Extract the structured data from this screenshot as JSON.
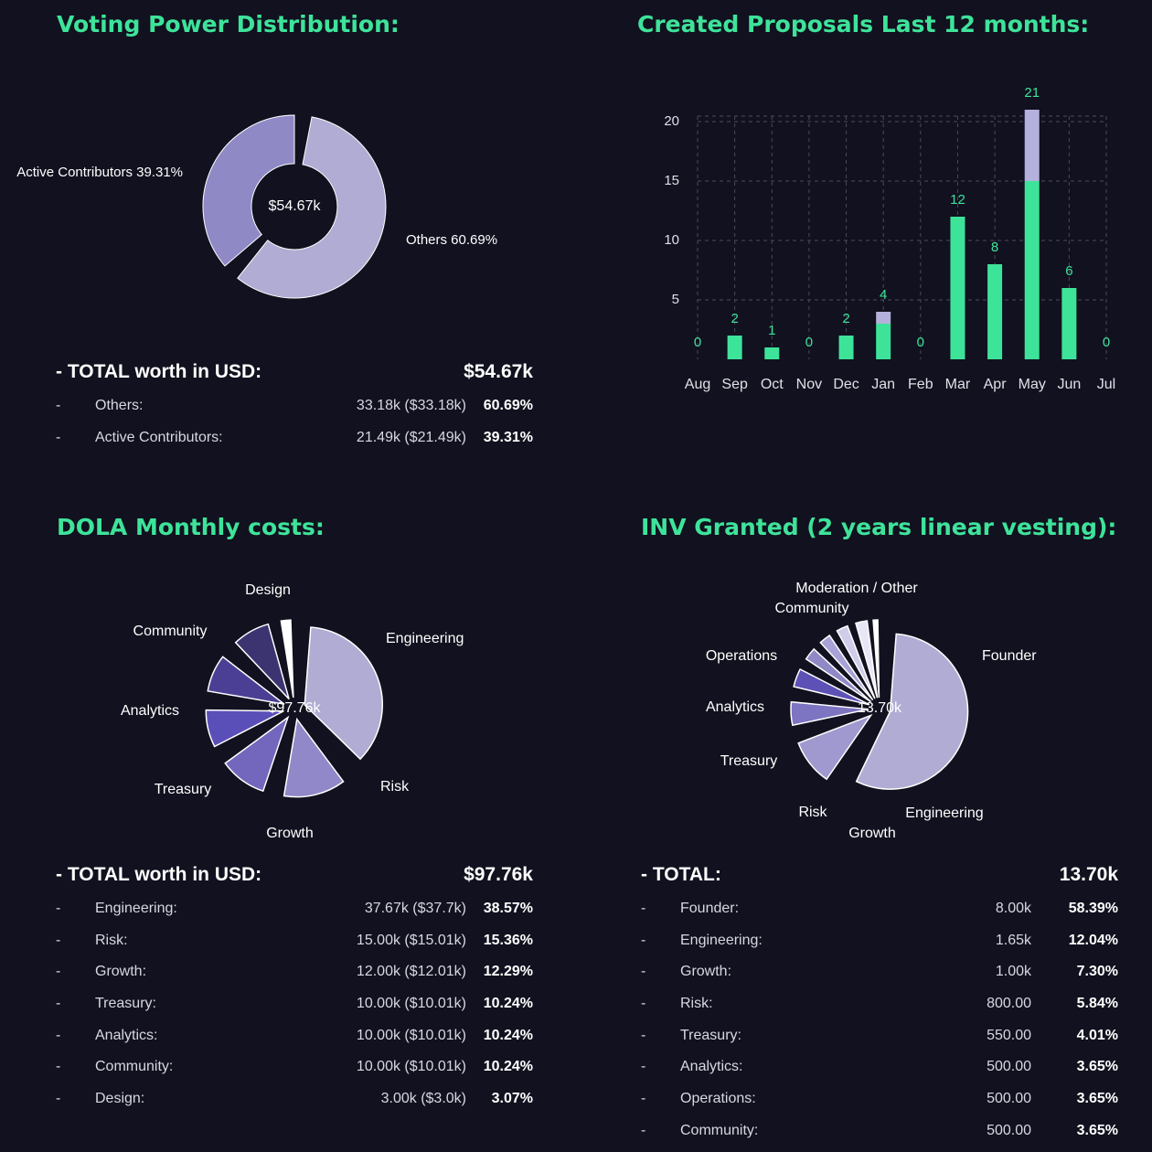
{
  "colors": {
    "background": "#11111f",
    "title": "#3ee39a",
    "bar_green": "#3ee39a",
    "bar_purple": "#b4b1dc",
    "wedge_light": "#b0acd3",
    "wedge_mid": "#8f89c6",
    "wedge_dark": "#5a50b0",
    "grid": "#4a4a5a"
  },
  "voting": {
    "title": "Voting Power Distribution:",
    "summary": {
      "label": "- TOTAL worth in USD:",
      "total": "$54.67k",
      "rows": [
        {
          "dash": "-",
          "name": "Others:",
          "value": "33.18k ($33.18k)",
          "pct": "60.69%"
        },
        {
          "dash": "-",
          "name": "Active Contributors:",
          "value": "21.49k ($21.49k)",
          "pct": "39.31%"
        }
      ]
    }
  },
  "proposals": {
    "title": "Created Proposals Last 12 months:"
  },
  "dola": {
    "title": "DOLA Monthly costs:",
    "summary": {
      "label": "- TOTAL worth in USD:",
      "total": "$97.76k",
      "rows": [
        {
          "dash": "-",
          "name": "Engineering:",
          "value": "37.67k ($37.7k)",
          "pct": "38.57%"
        },
        {
          "dash": "-",
          "name": "Risk:",
          "value": "15.00k ($15.01k)",
          "pct": "15.36%"
        },
        {
          "dash": "-",
          "name": "Growth:",
          "value": "12.00k ($12.01k)",
          "pct": "12.29%"
        },
        {
          "dash": "-",
          "name": "Treasury:",
          "value": "10.00k ($10.01k)",
          "pct": "10.24%"
        },
        {
          "dash": "-",
          "name": "Analytics:",
          "value": "10.00k ($10.01k)",
          "pct": "10.24%"
        },
        {
          "dash": "-",
          "name": "Community:",
          "value": "10.00k ($10.01k)",
          "pct": "10.24%"
        },
        {
          "dash": "-",
          "name": "Design:",
          "value": "3.00k ($3.0k)",
          "pct": "3.07%"
        }
      ]
    }
  },
  "inv": {
    "title": "INV Granted (2 years linear vesting):",
    "summary": {
      "label": "- TOTAL:",
      "total": "13.70k",
      "rows": [
        {
          "dash": "-",
          "name": "Founder:",
          "value": "8.00k",
          "pct": "58.39%"
        },
        {
          "dash": "-",
          "name": "Engineering:",
          "value": "1.65k",
          "pct": "12.04%"
        },
        {
          "dash": "-",
          "name": "Growth:",
          "value": "1.00k",
          "pct": "7.30%"
        },
        {
          "dash": "-",
          "name": "Risk:",
          "value": "800.00",
          "pct": "5.84%"
        },
        {
          "dash": "-",
          "name": "Treasury:",
          "value": "550.00",
          "pct": "4.01%"
        },
        {
          "dash": "-",
          "name": "Analytics:",
          "value": "500.00",
          "pct": "3.65%"
        },
        {
          "dash": "-",
          "name": "Operations:",
          "value": "500.00",
          "pct": "3.65%"
        },
        {
          "dash": "-",
          "name": "Community:",
          "value": "500.00",
          "pct": "3.65%"
        }
      ]
    }
  },
  "chart_data": [
    {
      "type": "pie",
      "title": "Voting Power Distribution:",
      "center_label": "$54.67k",
      "slices": [
        {
          "label": "Others 60.69%",
          "value": 60.69
        },
        {
          "label": "Active Contributors 39.31%",
          "value": 39.31
        }
      ]
    },
    {
      "type": "bar",
      "title": "Created Proposals Last 12 months:",
      "categories": [
        "Aug",
        "Sep",
        "Oct",
        "Nov",
        "Dec",
        "Jan",
        "Feb",
        "Mar",
        "Apr",
        "May",
        "Jun",
        "Jul"
      ],
      "totals": [
        0,
        2,
        1,
        0,
        2,
        4,
        0,
        12,
        8,
        21,
        6,
        0
      ],
      "series": [
        {
          "values": [
            0,
            2,
            1,
            0,
            2,
            3,
            0,
            12,
            8,
            15,
            6,
            0
          ]
        },
        {
          "values": [
            0,
            0,
            0,
            0,
            0,
            1,
            0,
            0,
            0,
            6,
            0,
            0
          ]
        }
      ],
      "yticks": [
        5,
        10,
        15,
        20
      ],
      "ylim": [
        0,
        21
      ],
      "grid": true
    },
    {
      "type": "pie",
      "title": "DOLA Monthly costs:",
      "center_label": "$97.76k",
      "slices": [
        {
          "label": "Engineering",
          "value": 38.57
        },
        {
          "label": "Risk",
          "value": 15.36
        },
        {
          "label": "Growth",
          "value": 12.29
        },
        {
          "label": "Treasury",
          "value": 10.24
        },
        {
          "label": "Analytics",
          "value": 10.24
        },
        {
          "label": "Community",
          "value": 10.24
        },
        {
          "label": "Design",
          "value": 3.07
        }
      ]
    },
    {
      "type": "pie",
      "title": "INV Granted (2 years linear vesting):",
      "center_label": "13.70k",
      "slices": [
        {
          "label": "Founder",
          "value": 58.39
        },
        {
          "label": "Engineering",
          "value": 12.04
        },
        {
          "label": "Growth",
          "value": 7.3
        },
        {
          "label": "Risk",
          "value": 5.84
        },
        {
          "label": "Treasury",
          "value": 4.01
        },
        {
          "label": "Analytics",
          "value": 3.65
        },
        {
          "label": "Operations",
          "value": 3.65
        },
        {
          "label": "Community",
          "value": 3.65
        },
        {
          "label": "Moderation / Other",
          "value": 1.46
        }
      ]
    }
  ]
}
